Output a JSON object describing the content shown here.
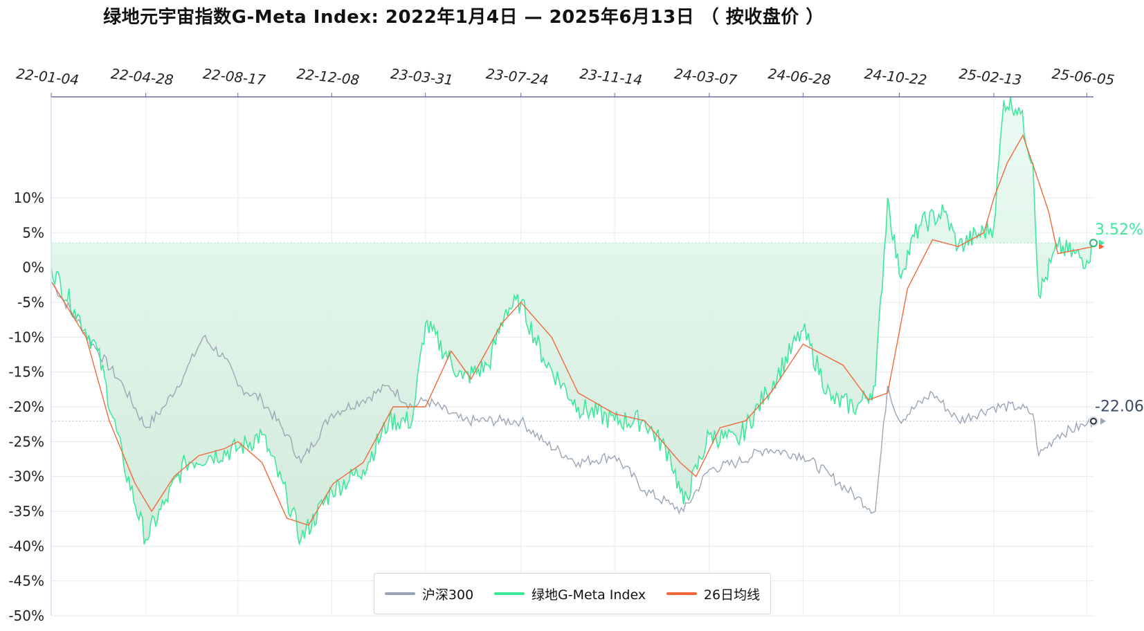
{
  "chart_data": {
    "type": "line",
    "title": "绿地元宇宙指数G-Meta Index:  2022年1月4日  —  2025年6月13日  （ 按收盘价 ）",
    "x_axis_position": "top",
    "x_tick_labels": [
      "22-01-04",
      "22-04-28",
      "22-08-17",
      "22-12-08",
      "23-03-31",
      "23-07-24",
      "23-11-14",
      "24-03-07",
      "24-06-28",
      "24-10-22",
      "25-02-13",
      "25-06-05"
    ],
    "y_tick_labels": [
      "10%",
      "5%",
      "0%",
      "-5%",
      "-10%",
      "-15%",
      "-20%",
      "-25%",
      "-30%",
      "-35%",
      "-40%",
      "-45%",
      "-50%"
    ],
    "y_ticks": [
      10,
      5,
      0,
      -5,
      -10,
      -15,
      -20,
      -25,
      -30,
      -35,
      -40,
      -45,
      -50
    ],
    "ylim": [
      -50,
      24.5
    ],
    "grid": true,
    "legend_position": "bottom-center",
    "series": [
      {
        "name": "沪深300",
        "color": "#9aa6b5",
        "x": [
          "2022-01-04",
          "2022-02-01",
          "2022-03-01",
          "2022-04-01",
          "2022-04-28",
          "2022-05-20",
          "2022-06-15",
          "2022-07-06",
          "2022-08-01",
          "2022-08-17",
          "2022-09-15",
          "2022-10-15",
          "2022-11-01",
          "2022-12-08",
          "2023-01-15",
          "2023-02-15",
          "2023-03-15",
          "2023-03-31",
          "2023-05-15",
          "2023-07-01",
          "2023-07-24",
          "2023-08-20",
          "2023-10-01",
          "2023-11-14",
          "2023-12-20",
          "2024-01-20",
          "2024-02-05",
          "2024-03-07",
          "2024-04-10",
          "2024-05-15",
          "2024-06-28",
          "2024-08-01",
          "2024-09-01",
          "2024-09-23",
          "2024-10-08",
          "2024-10-22",
          "2024-12-01",
          "2025-01-01",
          "2025-02-13",
          "2025-03-15",
          "2025-04-01",
          "2025-04-08",
          "2025-05-01",
          "2025-06-05",
          "2025-06-13"
        ],
        "values": [
          -2,
          -7,
          -12,
          -17,
          -23,
          -20,
          -15,
          -10,
          -13,
          -17,
          -19,
          -24,
          -28,
          -21,
          -19,
          -17,
          -20,
          -19,
          -22,
          -22,
          -22,
          -25,
          -28,
          -27,
          -32,
          -34,
          -35,
          -29,
          -28,
          -26,
          -27,
          -30,
          -33,
          -35,
          -17,
          -22,
          -18,
          -22,
          -20,
          -20,
          -21,
          -27,
          -24,
          -22.5,
          -22.06
        ]
      },
      {
        "name": "绿地G-Meta Index",
        "color": "#3de89c",
        "x": [
          "2022-01-04",
          "2022-02-01",
          "2022-03-01",
          "2022-04-01",
          "2022-04-28",
          "2022-05-20",
          "2022-06-15",
          "2022-07-15",
          "2022-08-17",
          "2022-09-15",
          "2022-10-15",
          "2022-11-01",
          "2022-12-08",
          "2023-01-15",
          "2023-02-15",
          "2023-03-15",
          "2023-03-31",
          "2023-05-15",
          "2023-06-15",
          "2023-07-06",
          "2023-07-24",
          "2023-08-20",
          "2023-10-01",
          "2023-11-14",
          "2023-12-20",
          "2024-01-20",
          "2024-02-05",
          "2024-03-07",
          "2024-04-10",
          "2024-05-15",
          "2024-06-28",
          "2024-08-01",
          "2024-09-01",
          "2024-09-23",
          "2024-10-08",
          "2024-10-22",
          "2024-11-15",
          "2024-12-15",
          "2025-01-01",
          "2025-02-13",
          "2025-02-25",
          "2025-03-15",
          "2025-04-01",
          "2025-04-08",
          "2025-05-01",
          "2025-06-05",
          "2025-06-13"
        ],
        "values": [
          0,
          -6,
          -12,
          -28,
          -39,
          -34,
          -28,
          -27,
          -26,
          -24,
          -33,
          -39,
          -32,
          -29,
          -22,
          -22,
          -8,
          -16,
          -14,
          -6,
          -5,
          -13,
          -20,
          -22,
          -22,
          -27,
          -34,
          -24,
          -25,
          -18,
          -9,
          -19,
          -20,
          -17,
          10,
          -1,
          6,
          8,
          3,
          6,
          24,
          23,
          15,
          -4,
          3,
          1,
          3.52
        ]
      },
      {
        "name": "26日均线",
        "color": "#f0683c",
        "x": [
          "2022-01-04",
          "2022-02-15",
          "2022-03-15",
          "2022-04-15",
          "2022-05-05",
          "2022-06-01",
          "2022-07-01",
          "2022-08-01",
          "2022-08-17",
          "2022-09-15",
          "2022-10-15",
          "2022-11-10",
          "2022-12-10",
          "2023-01-15",
          "2023-02-20",
          "2023-03-31",
          "2023-05-01",
          "2023-05-25",
          "2023-07-01",
          "2023-07-24",
          "2023-08-30",
          "2023-10-01",
          "2023-11-14",
          "2023-12-20",
          "2024-02-01",
          "2024-02-20",
          "2024-03-20",
          "2024-04-20",
          "2024-05-20",
          "2024-06-28",
          "2024-08-15",
          "2024-09-15",
          "2024-10-08",
          "2024-11-01",
          "2024-12-01",
          "2025-01-01",
          "2025-02-01",
          "2025-02-13",
          "2025-03-01",
          "2025-03-20",
          "2025-04-20",
          "2025-05-01",
          "2025-06-13"
        ],
        "values": [
          -2,
          -10,
          -22,
          -31,
          -35,
          -30,
          -27,
          -26,
          -25,
          -28,
          -36,
          -37,
          -31,
          -28,
          -20,
          -20,
          -12,
          -16,
          -8,
          -5,
          -10,
          -18,
          -21,
          -22,
          -28,
          -30,
          -23,
          -22,
          -18,
          -11,
          -14,
          -19,
          -18,
          -3,
          4,
          3,
          5,
          10,
          15,
          19,
          8,
          2,
          3
        ]
      }
    ],
    "end_labels": [
      "3.52%",
      "-22.06%"
    ],
    "end_label_values": [
      3.52,
      -22.06
    ]
  },
  "legend": {
    "items": [
      {
        "label": "沪深300",
        "color": "#9aa6b5"
      },
      {
        "label": "绿地G-Meta Index",
        "color": "#3de89c"
      },
      {
        "label": "26日均线",
        "color": "#f0683c"
      }
    ]
  }
}
